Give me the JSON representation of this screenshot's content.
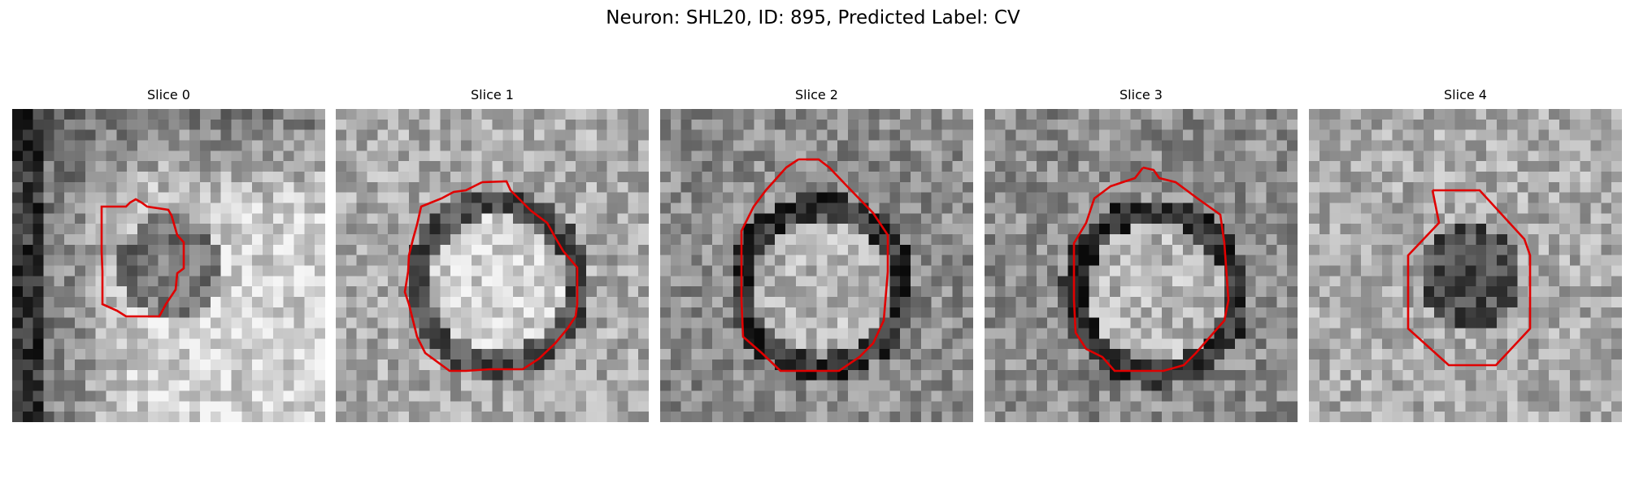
{
  "figure": {
    "title": "Neuron: SHL20, ID: 895, Predicted Label: CV"
  },
  "outline_color": "#e00000",
  "panels": [
    {
      "title": "Slice 0",
      "seed": 11,
      "style": "dark-left",
      "ring": "none",
      "center_bright": false,
      "blob": [
        0.49,
        0.49
      ]
    },
    {
      "title": "Slice 1",
      "seed": 23,
      "style": "bright",
      "ring": "dark",
      "center_bright": true,
      "blob": [
        0.5,
        0.54
      ]
    },
    {
      "title": "Slice 2",
      "seed": 37,
      "style": "mid",
      "ring": "dark",
      "center_bright": true,
      "blob": [
        0.5,
        0.55
      ]
    },
    {
      "title": "Slice 3",
      "seed": 41,
      "style": "mid",
      "ring": "dark",
      "center_bright": true,
      "blob": [
        0.53,
        0.57
      ]
    },
    {
      "title": "Slice 4",
      "seed": 53,
      "style": "bright",
      "ring": "none",
      "center_bright": false,
      "blob": [
        0.5,
        0.52
      ]
    }
  ]
}
